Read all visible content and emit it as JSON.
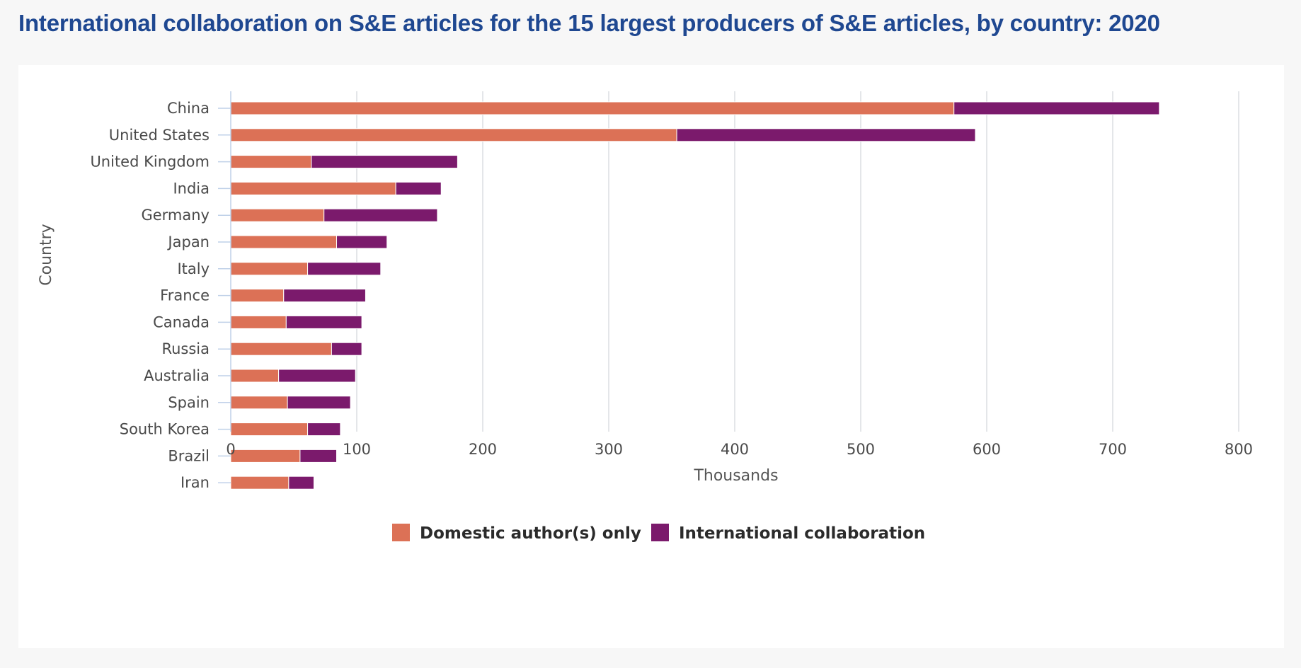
{
  "page": {
    "title": "International collaboration on S&E articles for the 15 largest producers of S&E articles, by country: 2020"
  },
  "chart_data": {
    "type": "bar",
    "orientation": "horizontal",
    "stacked": true,
    "title": "International collaboration on S&E articles for the 15 largest producers of S&E articles, by country: 2020",
    "xlabel": "Thousands",
    "ylabel": "Country",
    "xlim": [
      0,
      800
    ],
    "xticks": [
      0,
      100,
      200,
      300,
      400,
      500,
      600,
      700,
      800
    ],
    "grid": true,
    "legend_position": "bottom-center",
    "categories": [
      "China",
      "United States",
      "United Kingdom",
      "India",
      "Germany",
      "Japan",
      "Italy",
      "France",
      "Canada",
      "Russia",
      "Australia",
      "Spain",
      "South Korea",
      "Brazil",
      "Iran"
    ],
    "series": [
      {
        "name": "Domestic author(s) only",
        "color": "#dc7156",
        "values": [
          574,
          354,
          64,
          131,
          74,
          84,
          61,
          42,
          44,
          80,
          38,
          45,
          61,
          55,
          46
        ]
      },
      {
        "name": "International collaboration",
        "color": "#7b1a6c",
        "values": [
          163,
          237,
          116,
          36,
          90,
          40,
          58,
          65,
          60,
          24,
          61,
          50,
          26,
          29,
          20
        ]
      }
    ]
  }
}
